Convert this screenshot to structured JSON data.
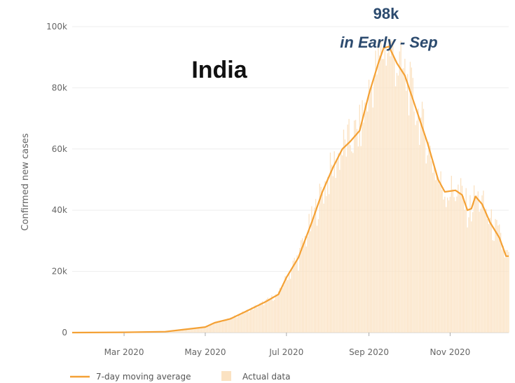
{
  "chart_data": {
    "type": "bar",
    "title": "India",
    "ylabel": "Confirmed new cases",
    "xlabel": "",
    "x_start": "2020-01-22",
    "x_end": "2020-12-15",
    "ylim": [
      0,
      100000
    ],
    "y_ticks": [
      0,
      20000,
      40000,
      60000,
      80000,
      100000
    ],
    "y_tick_labels": [
      "0",
      "20k",
      "40k",
      "60k",
      "80k",
      "100k"
    ],
    "x_ticks": [
      {
        "date": "2020-03-01",
        "label": "Mar 2020"
      },
      {
        "date": "2020-05-01",
        "label": "May 2020"
      },
      {
        "date": "2020-07-01",
        "label": "Jul 2020"
      },
      {
        "date": "2020-09-01",
        "label": "Sep 2020"
      },
      {
        "date": "2020-11-01",
        "label": "Nov 2020"
      }
    ],
    "grid": true,
    "legend_position": "bottom-left",
    "annotation": {
      "value_label": "98k",
      "text": "in Early - Sep"
    },
    "series": [
      {
        "name": "7-day moving average",
        "type": "line",
        "color": "#f4a135",
        "points": [
          {
            "x": "2020-01-22",
            "y": 0
          },
          {
            "x": "2020-03-01",
            "y": 100
          },
          {
            "x": "2020-04-01",
            "y": 300
          },
          {
            "x": "2020-04-15",
            "y": 1000
          },
          {
            "x": "2020-05-01",
            "y": 1800
          },
          {
            "x": "2020-05-08",
            "y": 3200
          },
          {
            "x": "2020-05-20",
            "y": 4500
          },
          {
            "x": "2020-06-01",
            "y": 7000
          },
          {
            "x": "2020-06-15",
            "y": 10000
          },
          {
            "x": "2020-06-25",
            "y": 12500
          },
          {
            "x": "2020-07-01",
            "y": 18000
          },
          {
            "x": "2020-07-10",
            "y": 24500
          },
          {
            "x": "2020-07-20",
            "y": 36000
          },
          {
            "x": "2020-07-28",
            "y": 46000
          },
          {
            "x": "2020-08-05",
            "y": 54000
          },
          {
            "x": "2020-08-12",
            "y": 60000
          },
          {
            "x": "2020-08-18",
            "y": 62500
          },
          {
            "x": "2020-08-25",
            "y": 66000
          },
          {
            "x": "2020-09-01",
            "y": 78000
          },
          {
            "x": "2020-09-08",
            "y": 88000
          },
          {
            "x": "2020-09-12",
            "y": 93000
          },
          {
            "x": "2020-09-16",
            "y": 93500
          },
          {
            "x": "2020-09-22",
            "y": 88000
          },
          {
            "x": "2020-09-28",
            "y": 84000
          },
          {
            "x": "2020-10-05",
            "y": 75000
          },
          {
            "x": "2020-10-15",
            "y": 62000
          },
          {
            "x": "2020-10-23",
            "y": 50000
          },
          {
            "x": "2020-10-28",
            "y": 46000
          },
          {
            "x": "2020-11-05",
            "y": 46500
          },
          {
            "x": "2020-11-10",
            "y": 45000
          },
          {
            "x": "2020-11-14",
            "y": 40000
          },
          {
            "x": "2020-11-17",
            "y": 40500
          },
          {
            "x": "2020-11-20",
            "y": 44500
          },
          {
            "x": "2020-11-25",
            "y": 42000
          },
          {
            "x": "2020-12-01",
            "y": 36000
          },
          {
            "x": "2020-12-08",
            "y": 31000
          },
          {
            "x": "2020-12-13",
            "y": 25000
          },
          {
            "x": "2020-12-15",
            "y": 25000
          }
        ]
      },
      {
        "name": "Actual data",
        "type": "bar",
        "color": "#fbe2c2",
        "note_values": "daily bars approximately follow the 7-day moving average with day-to-day scatter"
      }
    ]
  }
}
